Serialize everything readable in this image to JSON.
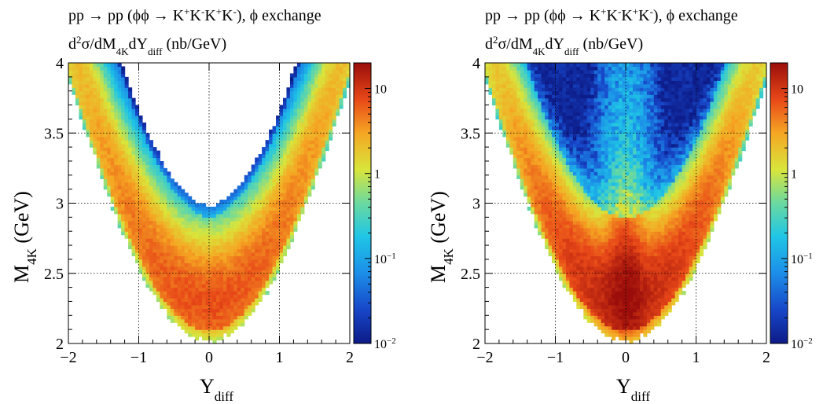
{
  "chart_data": [
    {
      "type": "heatmap",
      "title_line1": {
        "main": "pp → pp (ϕϕ → K",
        "k1": "+",
        "k2": "-",
        "k3": "+",
        "k4": "-",
        "end": "), ϕ exchange"
      },
      "title_line2": {
        "a": "d",
        "a_sup": "2",
        "b": "σ/dM",
        "b_sub": "4K",
        "c": "dY",
        "c_sub": "diff",
        "d": " (nb/GeV)"
      },
      "xlabel": {
        "main": "Y",
        "sub": "diff"
      },
      "ylabel": {
        "main": "M",
        "sub": "4K",
        "tail": " (GeV)"
      },
      "xlim": [
        -2,
        2
      ],
      "ylim": [
        2,
        4
      ],
      "xticks": [
        "−2",
        "−1",
        "0",
        "1",
        "2"
      ],
      "xtick_values": [
        -2,
        -1,
        0,
        1,
        2
      ],
      "yticks": [
        "2",
        "2.5",
        "3",
        "3.5",
        "4"
      ],
      "ytick_values": [
        2,
        2.5,
        3,
        3.5,
        4
      ],
      "grid": true,
      "colorbar": {
        "scale": "log",
        "min": 0.01,
        "max": 20,
        "ticks": [
          {
            "value": 0.01,
            "base": "10",
            "exp": "−2"
          },
          {
            "value": 0.1,
            "base": "10",
            "exp": "−1"
          },
          {
            "value": 1,
            "base": "1",
            "exp": ""
          },
          {
            "value": 10,
            "base": "10",
            "exp": ""
          }
        ]
      },
      "bins": {
        "nx": 80,
        "ny": 80
      },
      "model": {
        "lower_edge_center": 2.04,
        "lower_edge_slope": 0.545,
        "upper_edge_center": 2.97,
        "upper_edge_slope": 0.575,
        "upper_edge_at_2": 4.12,
        "peak_value": 6.5,
        "peak_mass": 2.36,
        "peak_y_width": 0.65,
        "band_curvature": 0.16,
        "central_spike": 0
      }
    },
    {
      "type": "heatmap",
      "title_line1": {
        "main": "pp → pp (ϕϕ → K",
        "k1": "+",
        "k2": "-",
        "k3": "+",
        "k4": "-",
        "end": "), ϕ exchange"
      },
      "title_line2": {
        "a": "d",
        "a_sup": "2",
        "b": "σ/dM",
        "b_sub": "4K",
        "c": "dY",
        "c_sub": "diff",
        "d": " (nb/GeV)"
      },
      "xlabel": {
        "main": "Y",
        "sub": "diff"
      },
      "ylabel": {
        "main": "M",
        "sub": "4K",
        "tail": " (GeV)"
      },
      "xlim": [
        -2,
        2
      ],
      "ylim": [
        2,
        4
      ],
      "xticks": [
        "−2",
        "−1",
        "0",
        "1",
        "2"
      ],
      "xtick_values": [
        -2,
        -1,
        0,
        1,
        2
      ],
      "yticks": [
        "2",
        "2.5",
        "3",
        "3.5",
        "4"
      ],
      "ytick_values": [
        2,
        2.5,
        3,
        3.5,
        4
      ],
      "grid": true,
      "colorbar": {
        "scale": "log",
        "min": 0.01,
        "max": 20,
        "ticks": [
          {
            "value": 0.01,
            "base": "10",
            "exp": "−2"
          },
          {
            "value": 0.1,
            "base": "10",
            "exp": "−1"
          },
          {
            "value": 1,
            "base": "1",
            "exp": ""
          },
          {
            "value": 10,
            "base": "10",
            "exp": ""
          }
        ]
      },
      "bins": {
        "nx": 80,
        "ny": 80
      },
      "model": {
        "lower_edge_center": 2.04,
        "lower_edge_slope": 0.545,
        "upper_edge_center": null,
        "upper_edge_slope": null,
        "upper_edge_at_2": null,
        "peak_value": 12,
        "peak_mass": 2.45,
        "peak_y_width": 0.5,
        "band_curvature": 0.16,
        "central_spike": 9
      }
    }
  ]
}
